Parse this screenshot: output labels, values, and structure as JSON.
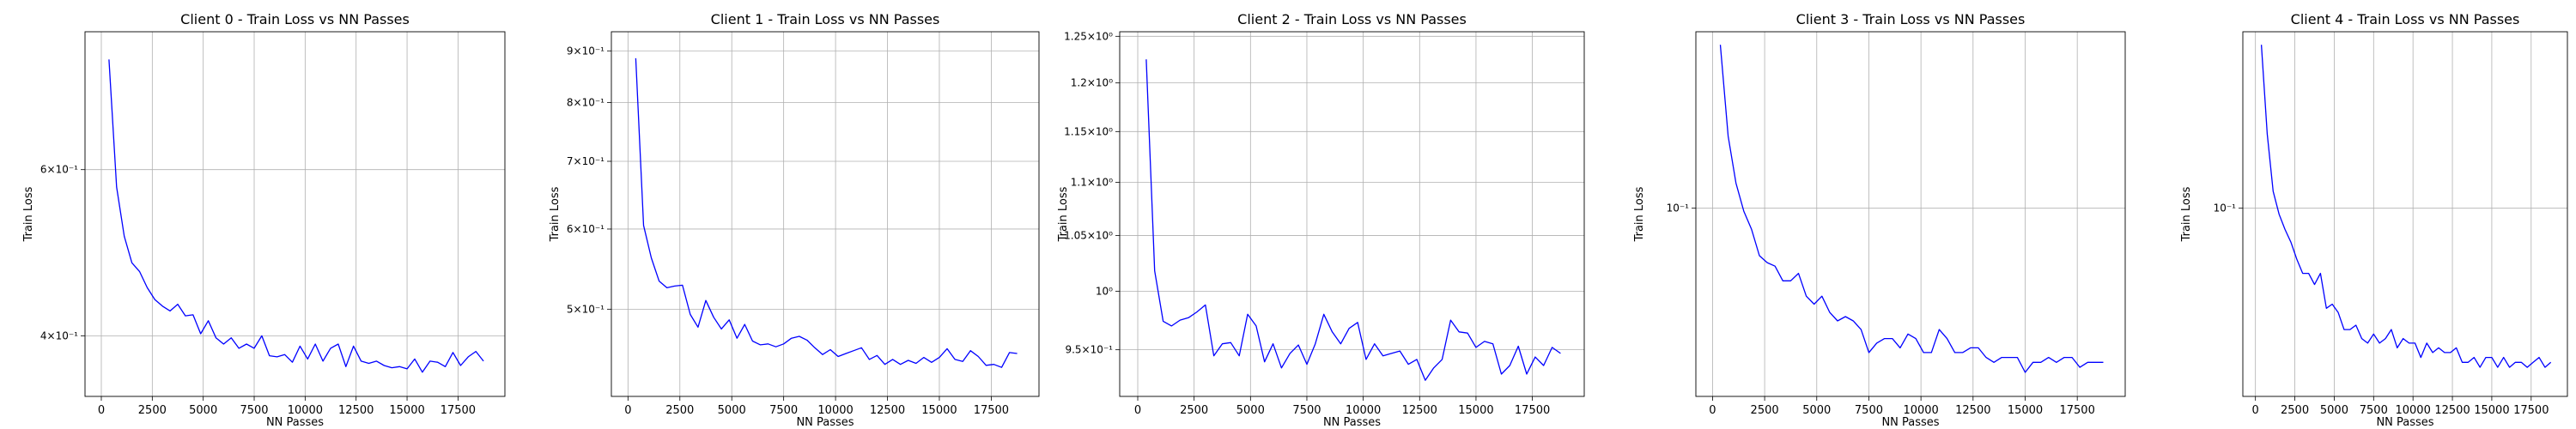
{
  "chart_data": [
    {
      "type": "line",
      "title": "Client 0 - Train Loss vs NN Passes",
      "xlabel": "NN Passes",
      "ylabel": "Train Loss",
      "yscale": "log",
      "grid": "x-major and y-major",
      "xlim": [
        -800,
        19800
      ],
      "ylim": [
        0.345,
        0.84
      ],
      "x_ticks": [
        0,
        2500,
        5000,
        7500,
        10000,
        12500,
        15000,
        17500
      ],
      "x_tick_labels": [
        "0",
        "2500",
        "5000",
        "7500",
        "10000",
        "12500",
        "15000",
        "17500"
      ],
      "y_ticks": [
        0.4,
        0.6
      ],
      "y_tick_labels": [
        "4×10⁻¹",
        "6×10⁻¹"
      ],
      "series": [
        {
          "color": "#0000ff",
          "x": [
            375,
            750,
            1125,
            1500,
            1875,
            2250,
            2625,
            3000,
            3375,
            3750,
            4125,
            4500,
            4875,
            5250,
            5625,
            6000,
            6375,
            6750,
            7125,
            7500,
            7875,
            8250,
            8625,
            9000,
            9375,
            9750,
            10125,
            10500,
            10875,
            11250,
            11625,
            12000,
            12375,
            12750,
            13125,
            13500,
            13875,
            14250,
            14625,
            15000,
            15375,
            15750,
            16125,
            16500,
            16875,
            17250,
            17625,
            18000,
            18375,
            18750
          ],
          "y": [
            0.785,
            0.575,
            0.51,
            0.478,
            0.468,
            0.45,
            0.437,
            0.43,
            0.425,
            0.432,
            0.42,
            0.421,
            0.402,
            0.415,
            0.398,
            0.392,
            0.398,
            0.388,
            0.392,
            0.388,
            0.4,
            0.381,
            0.38,
            0.382,
            0.375,
            0.39,
            0.378,
            0.392,
            0.376,
            0.388,
            0.392,
            0.371,
            0.39,
            0.376,
            0.374,
            0.376,
            0.372,
            0.37,
            0.371,
            0.369,
            0.378,
            0.366,
            0.376,
            0.375,
            0.371,
            0.384,
            0.372,
            0.38,
            0.385,
            0.376
          ]
        }
      ]
    },
    {
      "type": "line",
      "title": "Client 1 - Train Loss vs NN Passes",
      "xlabel": "NN Passes",
      "ylabel": "Train Loss",
      "yscale": "log",
      "grid": "x-major and y-major",
      "xlim": [
        -800,
        19800
      ],
      "ylim": [
        0.41,
        0.94
      ],
      "x_ticks": [
        0,
        2500,
        5000,
        7500,
        10000,
        12500,
        15000,
        17500
      ],
      "x_tick_labels": [
        "0",
        "2500",
        "5000",
        "7500",
        "10000",
        "12500",
        "15000",
        "17500"
      ],
      "y_ticks": [
        0.5,
        0.6,
        0.7,
        0.8,
        0.9
      ],
      "y_tick_labels": [
        "5×10⁻¹",
        "6×10⁻¹",
        "7×10⁻¹",
        "8×10⁻¹",
        "9×10⁻¹"
      ],
      "series": [
        {
          "color": "#0000ff",
          "x": [
            375,
            750,
            1125,
            1500,
            1875,
            2250,
            2625,
            3000,
            3375,
            3750,
            4125,
            4500,
            4875,
            5250,
            5625,
            6000,
            6375,
            6750,
            7125,
            7500,
            7875,
            8250,
            8625,
            9000,
            9375,
            9750,
            10125,
            10500,
            10875,
            11250,
            11625,
            12000,
            12375,
            12750,
            13125,
            13500,
            13875,
            14250,
            14625,
            15000,
            15375,
            15750,
            16125,
            16500,
            16875,
            17250,
            17625,
            18000,
            18375,
            18750
          ],
          "y": [
            0.885,
            0.605,
            0.562,
            0.533,
            0.525,
            0.527,
            0.528,
            0.494,
            0.48,
            0.51,
            0.491,
            0.478,
            0.488,
            0.468,
            0.483,
            0.465,
            0.461,
            0.462,
            0.459,
            0.462,
            0.468,
            0.47,
            0.466,
            0.458,
            0.451,
            0.456,
            0.449,
            0.452,
            0.455,
            0.458,
            0.446,
            0.45,
            0.441,
            0.446,
            0.441,
            0.445,
            0.442,
            0.448,
            0.443,
            0.448,
            0.457,
            0.446,
            0.444,
            0.455,
            0.449,
            0.44,
            0.441,
            0.438,
            0.453,
            0.452
          ]
        }
      ]
    },
    {
      "type": "line",
      "title": "Client 2 - Train Loss vs NN Passes",
      "xlabel": "NN Passes",
      "ylabel": "Train Loss",
      "yscale": "log",
      "grid": "x-major and y-major",
      "xlim": [
        -800,
        19800
      ],
      "ylim": [
        0.912,
        1.255
      ],
      "x_ticks": [
        0,
        2500,
        5000,
        7500,
        10000,
        12500,
        15000,
        17500
      ],
      "x_tick_labels": [
        "0",
        "2500",
        "5000",
        "7500",
        "10000",
        "12500",
        "15000",
        "17500"
      ],
      "y_ticks": [
        0.95,
        1.0,
        1.05,
        1.1,
        1.15,
        1.2,
        1.25
      ],
      "y_tick_labels": [
        "9.5×10⁻¹",
        "10⁰",
        "1.05×10⁰",
        "1.1×10⁰",
        "1.15×10⁰",
        "1.2×10⁰",
        "1.25×10⁰"
      ],
      "series": [
        {
          "color": "#0000ff",
          "x": [
            375,
            750,
            1125,
            1500,
            1875,
            2250,
            2625,
            3000,
            3375,
            3750,
            4125,
            4500,
            4875,
            5250,
            5625,
            6000,
            6375,
            6750,
            7125,
            7500,
            7875,
            8250,
            8625,
            9000,
            9375,
            9750,
            10125,
            10500,
            10875,
            11250,
            11625,
            12000,
            12375,
            12750,
            13125,
            13500,
            13875,
            14250,
            14625,
            15000,
            15375,
            15750,
            16125,
            16500,
            16875,
            17250,
            17625,
            18000,
            18375,
            18750
          ],
          "y": [
            1.225,
            1.018,
            0.974,
            0.97,
            0.975,
            0.977,
            0.982,
            0.988,
            0.945,
            0.955,
            0.956,
            0.945,
            0.98,
            0.97,
            0.94,
            0.955,
            0.935,
            0.947,
            0.954,
            0.938,
            0.955,
            0.98,
            0.965,
            0.955,
            0.968,
            0.973,
            0.942,
            0.955,
            0.945,
            0.947,
            0.949,
            0.938,
            0.942,
            0.925,
            0.935,
            0.942,
            0.975,
            0.965,
            0.964,
            0.952,
            0.957,
            0.955,
            0.93,
            0.937,
            0.953,
            0.93,
            0.944,
            0.937,
            0.952,
            0.947
          ]
        }
      ]
    },
    {
      "type": "line",
      "title": "Client 3 - Train Loss vs NN Passes",
      "xlabel": "NN Passes",
      "ylabel": "Train Loss",
      "yscale": "log",
      "grid": "x-major and y-major",
      "xlim": [
        -800,
        19800
      ],
      "ylim": [
        0.0525,
        0.183
      ],
      "x_ticks": [
        0,
        2500,
        5000,
        7500,
        10000,
        12500,
        15000,
        17500
      ],
      "x_tick_labels": [
        "0",
        "2500",
        "5000",
        "7500",
        "10000",
        "12500",
        "15000",
        "17500"
      ],
      "y_ticks": [
        0.1
      ],
      "y_tick_labels": [
        "10⁻¹"
      ],
      "series": [
        {
          "color": "#0000ff",
          "x": [
            375,
            750,
            1125,
            1500,
            1875,
            2250,
            2625,
            3000,
            3375,
            3750,
            4125,
            4500,
            4875,
            5250,
            5625,
            6000,
            6375,
            6750,
            7125,
            7500,
            7875,
            8250,
            8625,
            9000,
            9375,
            9750,
            10125,
            10500,
            10875,
            11250,
            11625,
            12000,
            12375,
            12750,
            13125,
            13500,
            13875,
            14250,
            14625,
            15000,
            15375,
            15750,
            16125,
            16500,
            16875,
            17250,
            17625,
            18000,
            18375,
            18750
          ],
          "y": [
            0.175,
            0.128,
            0.109,
            0.099,
            0.093,
            0.085,
            0.083,
            0.082,
            0.078,
            0.078,
            0.08,
            0.074,
            0.072,
            0.074,
            0.07,
            0.068,
            0.069,
            0.068,
            0.066,
            0.061,
            0.063,
            0.064,
            0.064,
            0.062,
            0.065,
            0.064,
            0.061,
            0.061,
            0.066,
            0.064,
            0.061,
            0.061,
            0.062,
            0.062,
            0.06,
            0.059,
            0.06,
            0.06,
            0.06,
            0.057,
            0.059,
            0.059,
            0.06,
            0.059,
            0.06,
            0.06,
            0.058,
            0.059,
            0.059,
            0.059
          ]
        }
      ]
    },
    {
      "type": "line",
      "title": "Client 4 - Train Loss vs NN Passes",
      "xlabel": "NN Passes",
      "ylabel": "Train Loss",
      "yscale": "log",
      "grid": "x-major and y-major",
      "xlim": [
        -800,
        19800
      ],
      "ylim": [
        0.0525,
        0.183
      ],
      "x_ticks": [
        0,
        2500,
        5000,
        7500,
        10000,
        12500,
        15000,
        17500
      ],
      "x_tick_labels": [
        "0",
        "2500",
        "5000",
        "7500",
        "10000",
        "12500",
        "15000",
        "17500"
      ],
      "y_ticks": [
        0.1
      ],
      "y_tick_labels": [
        "10⁻¹"
      ],
      "series": [
        {
          "color": "#0000ff",
          "x": [
            375,
            750,
            1125,
            1500,
            1875,
            2250,
            2625,
            3000,
            3375,
            3750,
            4125,
            4500,
            4875,
            5250,
            5625,
            6000,
            6375,
            6750,
            7125,
            7500,
            7875,
            8250,
            8625,
            9000,
            9375,
            9750,
            10125,
            10500,
            10875,
            11250,
            11625,
            12000,
            12375,
            12750,
            13125,
            13500,
            13875,
            14250,
            14625,
            15000,
            15375,
            15750,
            16125,
            16500,
            16875,
            17250,
            17625,
            18000,
            18375,
            18750
          ],
          "y": [
            0.175,
            0.129,
            0.106,
            0.098,
            0.093,
            0.089,
            0.084,
            0.08,
            0.08,
            0.077,
            0.08,
            0.071,
            0.072,
            0.07,
            0.066,
            0.066,
            0.067,
            0.064,
            0.063,
            0.065,
            0.063,
            0.064,
            0.066,
            0.062,
            0.064,
            0.063,
            0.063,
            0.06,
            0.063,
            0.061,
            0.062,
            0.061,
            0.061,
            0.062,
            0.059,
            0.059,
            0.06,
            0.058,
            0.06,
            0.06,
            0.058,
            0.06,
            0.058,
            0.059,
            0.059,
            0.058,
            0.059,
            0.06,
            0.058,
            0.059
          ]
        }
      ]
    }
  ]
}
